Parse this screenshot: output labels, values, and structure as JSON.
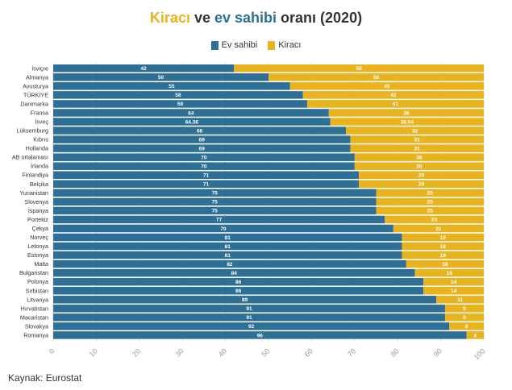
{
  "title": {
    "part1": "Kiracı",
    "part2": " ve ",
    "part3": "ev sahibi",
    "part4": " oranı (2020)"
  },
  "colors": {
    "owner": "#2E6F96",
    "tenant": "#E8B31F",
    "title_tenant": "#E8B31F",
    "title_owner": "#2E6F96"
  },
  "source": "Kaynak: Eurostat",
  "chart_data": {
    "type": "bar",
    "orientation": "horizontal",
    "stacked": true,
    "title": "Kiracı ve ev sahibi oranı (2020)",
    "legend": [
      "Ev sahibi",
      "Kiracı"
    ],
    "legend_position": "top-center",
    "xlim": [
      0,
      100
    ],
    "xticks": [
      "0",
      "10",
      "20",
      "30",
      "40",
      "50",
      "60",
      "70",
      "80",
      "90",
      "100"
    ],
    "categories": [
      "İsviçre",
      "Almanya",
      "Avusturya",
      "TÜRKİYE",
      "Danimarka",
      "Fransa",
      "İsveç",
      "Lüksemburg",
      "Kıbrıs",
      "Hollanda",
      "AB ortalaması",
      "İrlanda",
      "Finlandiya",
      "Belçika",
      "Yunanistan",
      "Slovenya",
      "İspanya",
      "Portekiz",
      "Çekya",
      "Norveç",
      "Letonya",
      "Estonya",
      "Malta",
      "Bulgaristan",
      "Polonya",
      "Sırbistan",
      "Litvanya",
      "Hırvatistan",
      "Macaristan",
      "Slovakya",
      "Romanya"
    ],
    "series": [
      {
        "name": "Ev sahibi",
        "values": [
          42,
          50,
          55,
          58,
          59,
          64,
          64.36,
          68,
          69,
          69,
          70,
          70,
          71,
          71,
          75,
          75,
          75,
          77,
          79,
          81,
          81,
          81,
          82,
          84,
          86,
          86,
          89,
          91,
          91,
          92,
          96
        ],
        "labels": [
          "42",
          "50",
          "55",
          "58",
          "59",
          "64",
          "64.36",
          "68",
          "69",
          "69",
          "70",
          "70",
          "71",
          "71",
          "75",
          "75",
          "75",
          "77",
          "79",
          "81",
          "81",
          "81",
          "82",
          "84",
          "86",
          "86",
          "89",
          "91",
          "91",
          "92",
          "96"
        ]
      },
      {
        "name": "Kiracı",
        "values": [
          58,
          50,
          45,
          42,
          41,
          36,
          35.64,
          32,
          31,
          31,
          30,
          30,
          29,
          29,
          25,
          25,
          25,
          23,
          21,
          19,
          19,
          19,
          18,
          16,
          14,
          14,
          11,
          9,
          9,
          8,
          4
        ],
        "labels": [
          "58",
          "50",
          "45",
          "42",
          "41",
          "36",
          "35.64",
          "32",
          "31",
          "31",
          "30",
          "30",
          "29",
          "29",
          "25",
          "25",
          "25",
          "23",
          "21",
          "19",
          "19",
          "19",
          "18",
          "16",
          "14",
          "14",
          "11",
          "9",
          "9",
          "8",
          "4"
        ]
      }
    ]
  }
}
